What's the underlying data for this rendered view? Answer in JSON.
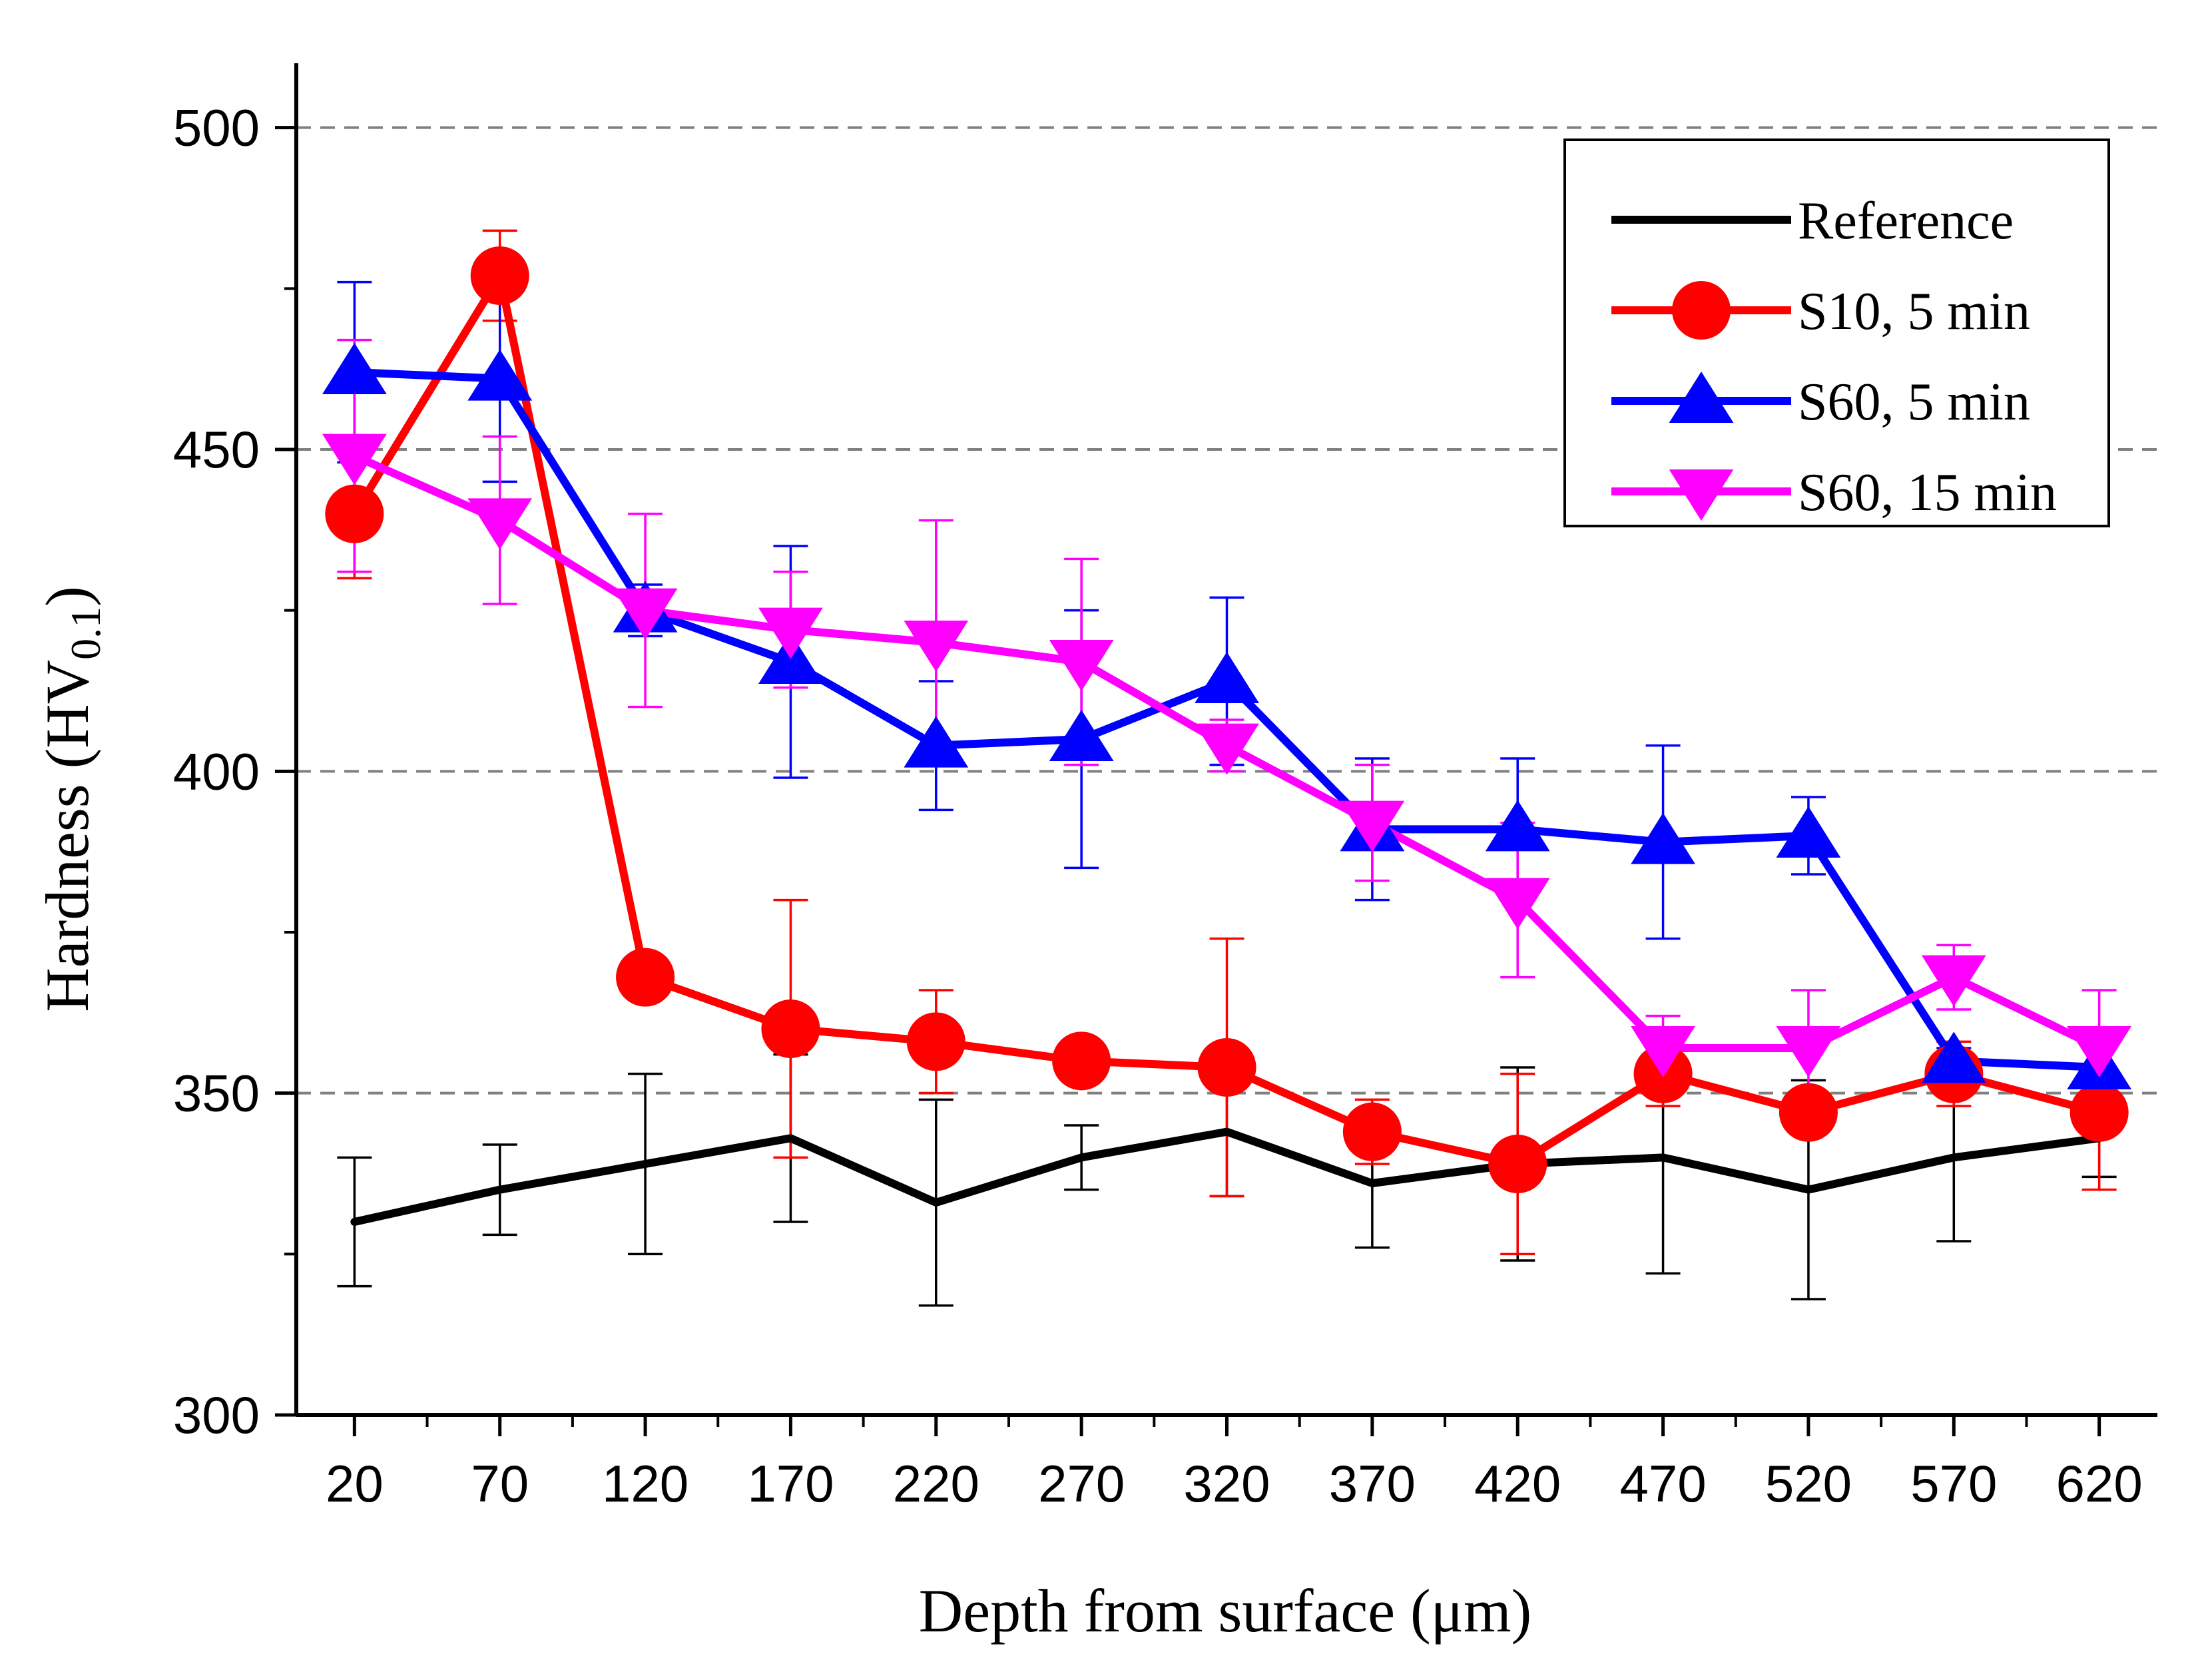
{
  "chart_data": {
    "type": "line",
    "xlabel": "Depth from surface (μm)",
    "ylabel": {
      "main": "Hardness (HV",
      "sub": "0.1",
      "close": ")"
    },
    "xlim": [
      0,
      640
    ],
    "ylim": [
      300,
      510
    ],
    "x": [
      20,
      70,
      120,
      170,
      220,
      270,
      320,
      370,
      420,
      470,
      520,
      570,
      620
    ],
    "x_tick_labels": [
      "20",
      "70",
      "120",
      "170",
      "220",
      "270",
      "320",
      "370",
      "420",
      "470",
      "520",
      "570",
      "620"
    ],
    "y_ticks": [
      300,
      350,
      400,
      450,
      500
    ],
    "y_tick_labels": [
      "300",
      "350",
      "400",
      "450",
      "500"
    ],
    "grid": {
      "y": true,
      "style": "dashed",
      "color": "#808080"
    },
    "legend_position": "top-right",
    "series": [
      {
        "name": "Reference",
        "color": "#000000",
        "marker": "none",
        "values": [
          330,
          335,
          339,
          343,
          333,
          340,
          344,
          336,
          339,
          340,
          335,
          340,
          343
        ],
        "errors": [
          10,
          7,
          14,
          13,
          16,
          5,
          10,
          10,
          15,
          18,
          17,
          13,
          6
        ]
      },
      {
        "name": "S10, 5 min",
        "color": "#ff0000",
        "marker": "circle",
        "values": [
          440,
          477,
          368,
          360,
          358,
          355,
          354,
          344,
          339,
          353,
          347,
          353,
          347
        ],
        "errors": [
          10,
          7,
          0,
          20,
          8,
          0,
          20,
          5,
          14,
          5,
          3,
          5,
          12
        ]
      },
      {
        "name": "S60, 5 min",
        "color": "#0000ff",
        "marker": "triangle-up",
        "values": [
          462,
          461,
          425,
          417,
          404,
          405,
          414,
          391,
          391,
          389,
          390,
          355,
          354
        ],
        "errors": [
          14,
          16,
          4,
          18,
          10,
          20,
          13,
          11,
          11,
          15,
          6,
          2,
          3
        ]
      },
      {
        "name": "S60, 15 min",
        "color": "#ff00ff",
        "marker": "triangle-down",
        "values": [
          449,
          439,
          425,
          422,
          420,
          417,
          404,
          392,
          380,
          357,
          357,
          368,
          357
        ],
        "errors": [
          18,
          13,
          15,
          9,
          19,
          16,
          4,
          9,
          12,
          5,
          9,
          5,
          9
        ]
      }
    ]
  }
}
